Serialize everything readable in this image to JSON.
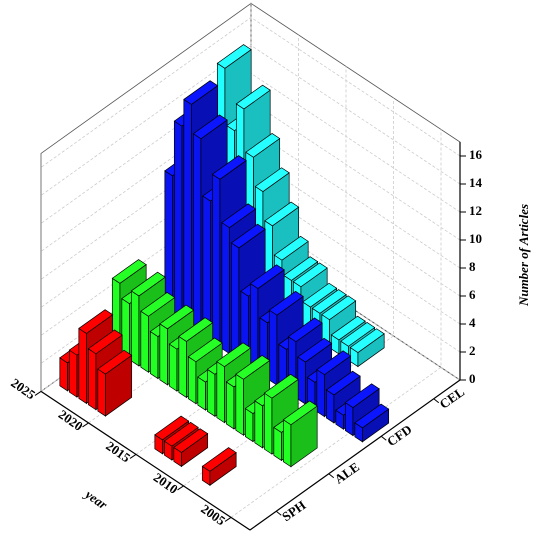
{
  "chart_data": {
    "type": "bar3d",
    "x": [
      2004,
      2005,
      2006,
      2007,
      2008,
      2009,
      2010,
      2011,
      2012,
      2013,
      2014,
      2015,
      2016,
      2017,
      2018,
      2019,
      2020,
      2021,
      2022,
      2023,
      2024
    ],
    "xlim": [
      2003,
      2025
    ],
    "xticks": [
      2005,
      2010,
      2015,
      2020,
      2025
    ],
    "categories": [
      "SPH",
      "ALE",
      "CFD",
      "CEL"
    ],
    "ylim": [
      0,
      17
    ],
    "yticks": [
      0,
      2,
      4,
      6,
      8,
      10,
      12,
      14,
      16
    ],
    "xlabel": "year",
    "ylabel": "Number of Articles",
    "grid": true,
    "series": [
      {
        "name": "SPH",
        "color": "#ff0000",
        "values": [
          null,
          null,
          null,
          null,
          null,
          1,
          null,
          null,
          1,
          1,
          1,
          null,
          null,
          null,
          null,
          null,
          3,
          4,
          5,
          3,
          2
        ]
      },
      {
        "name": "ALE",
        "color": "#22ff22",
        "values": [
          null,
          null,
          3,
          2,
          4,
          3,
          2,
          4,
          3,
          4,
          3,
          2,
          3,
          4,
          3,
          4,
          3,
          4,
          5,
          4,
          5
        ]
      },
      {
        "name": "CFD",
        "color": "#0a14f0",
        "values": [
          1,
          2,
          1,
          2,
          3,
          2,
          3,
          4,
          3,
          5,
          4,
          6,
          5,
          8,
          9,
          12,
          10,
          14,
          16,
          14,
          10
        ]
      },
      {
        "name": "CEL",
        "color": "#22ffff",
        "values": [
          null,
          null,
          null,
          null,
          null,
          null,
          1,
          1,
          1,
          2,
          2,
          2,
          3,
          3,
          4,
          6,
          8,
          10,
          13,
          11,
          15
        ]
      }
    ]
  }
}
